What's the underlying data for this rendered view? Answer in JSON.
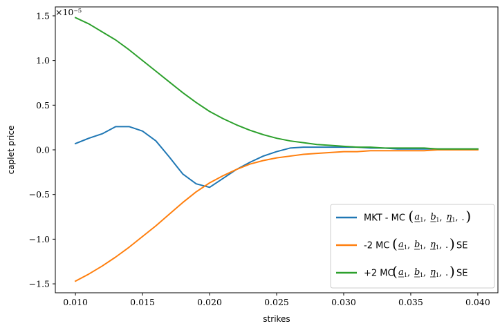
{
  "chart_data": {
    "type": "line",
    "xlabel": "strikes",
    "ylabel": "caplet price",
    "y_offset_label": "×10⁻⁵",
    "xlim": [
      0.0085,
      0.0415
    ],
    "ylim": [
      -1.6,
      1.6
    ],
    "xticks": [
      0.01,
      0.015,
      0.02,
      0.025,
      0.03,
      0.035,
      0.04
    ],
    "xtick_labels": [
      "0.010",
      "0.015",
      "0.020",
      "0.025",
      "0.030",
      "0.035",
      "0.040"
    ],
    "yticks": [
      -1.5,
      -1.0,
      -0.5,
      0.0,
      0.5,
      1.0,
      1.5
    ],
    "ytick_labels": [
      "−1.5",
      "−1.0",
      "−0.5",
      "0.0",
      "0.5",
      "1.0",
      "1.5"
    ],
    "grid": false,
    "legend_position": "lower-right",
    "x": [
      0.01,
      0.011,
      0.012,
      0.013,
      0.014,
      0.015,
      0.016,
      0.017,
      0.018,
      0.019,
      0.02,
      0.021,
      0.022,
      0.023,
      0.024,
      0.025,
      0.026,
      0.027,
      0.028,
      0.029,
      0.03,
      0.031,
      0.032,
      0.033,
      0.034,
      0.035,
      0.036,
      0.037,
      0.038,
      0.039,
      0.04
    ],
    "series": [
      {
        "name": "MKT - MC(a₁, b₁, η₁, .)",
        "color": "#1f77b4",
        "values": [
          0.07,
          0.13,
          0.18,
          0.26,
          0.26,
          0.21,
          0.1,
          -0.08,
          -0.27,
          -0.38,
          -0.42,
          -0.32,
          -0.22,
          -0.14,
          -0.07,
          -0.02,
          0.02,
          0.03,
          0.03,
          0.03,
          0.03,
          0.03,
          0.02,
          0.02,
          0.01,
          0.01,
          0.01,
          0.01,
          0.01,
          0.01,
          0.01
        ]
      },
      {
        "name": "-2 MC(a₁, b₁, η₁, .) SE",
        "color": "#ff7f0e",
        "values": [
          -1.47,
          -1.39,
          -1.3,
          -1.2,
          -1.09,
          -0.97,
          -0.85,
          -0.72,
          -0.59,
          -0.47,
          -0.37,
          -0.29,
          -0.22,
          -0.16,
          -0.12,
          -0.09,
          -0.07,
          -0.05,
          -0.04,
          -0.03,
          -0.02,
          -0.02,
          -0.01,
          -0.01,
          -0.01,
          -0.01,
          -0.01,
          0.0,
          0.0,
          0.0,
          0.0
        ]
      },
      {
        "name": "+2 MC(a₁, b₁, η₁, .) SE",
        "color": "#2ca02c",
        "values": [
          1.48,
          1.41,
          1.32,
          1.23,
          1.12,
          1.0,
          0.88,
          0.76,
          0.64,
          0.53,
          0.43,
          0.35,
          0.28,
          0.22,
          0.17,
          0.13,
          0.1,
          0.08,
          0.06,
          0.05,
          0.04,
          0.03,
          0.03,
          0.02,
          0.02,
          0.02,
          0.02,
          0.01,
          0.01,
          0.01,
          0.01
        ]
      }
    ]
  },
  "legend": {
    "items": [
      {
        "pre": "MKT - MC",
        "post": ""
      },
      {
        "pre": "-2 MC",
        "post": "SE"
      },
      {
        "pre": "+2 MC",
        "post": "SE"
      }
    ]
  }
}
